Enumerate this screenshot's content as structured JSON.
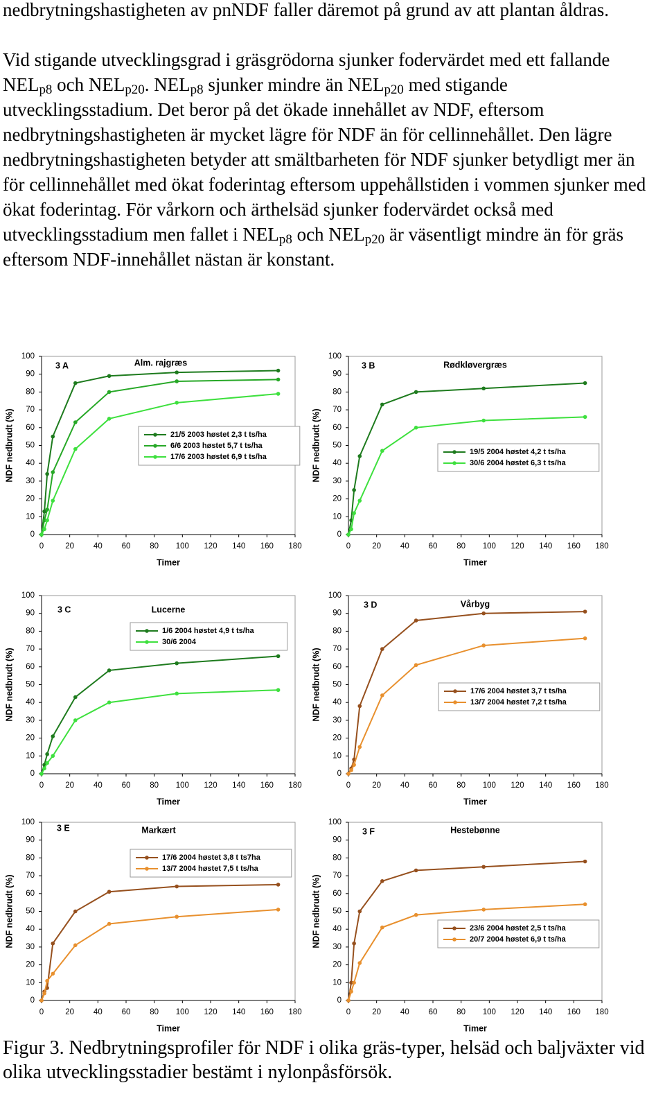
{
  "text": {
    "paragraphs": [
      [
        {
          "text": "nedbrytningshastigheten av pnNDF faller däremot på grund av att plantan åldras."
        }
      ],
      [
        {
          "text": "Vid stigande utvecklingsgrad i gräsgrödorna sjunker fodervärdet med ett fallande NEL"
        },
        {
          "sub": "p8"
        },
        {
          "text": " och NEL"
        },
        {
          "sub": "p20"
        },
        {
          "text": ". NEL"
        },
        {
          "sub": "p8"
        },
        {
          "text": " sjunker mindre än NEL"
        },
        {
          "sub": "p20"
        },
        {
          "text": " med stigande utvecklingsstadium. Det beror på det ökade innehållet av NDF, eftersom nedbrytningshastigheten är mycket lägre för NDF än för cellinnehållet. Den lägre nedbrytningshastigheten betyder att smältbarheten för NDF sjunker betydligt mer än för cellinnehållet med ökat foderintag eftersom uppehållstiden i vommen sjunker med ökat foderintag. För vårkorn och ärthelsäd sjunker fodervärdet också med utvecklingsstadium men fallet i NEL"
        },
        {
          "sub": "p8"
        },
        {
          "text": " och NEL"
        },
        {
          "sub": "p20"
        },
        {
          "text": " är väsentligt mindre än för gräs eftersom NDF-innehållet nästan är konstant."
        }
      ]
    ]
  },
  "chart_data": [
    {
      "type": "line",
      "panel": "3 A",
      "title": "Alm. rajgræs",
      "xlabel": "Timer",
      "ylabel": "NDF nedbrudt (%)",
      "x": [
        0,
        2,
        4,
        8,
        24,
        48,
        96,
        168
      ],
      "xlim": [
        0,
        180
      ],
      "xticks": [
        0,
        20,
        40,
        60,
        80,
        100,
        120,
        140,
        160,
        180
      ],
      "ylim": [
        0,
        100
      ],
      "yticks": [
        0,
        10,
        20,
        30,
        40,
        50,
        60,
        70,
        80,
        90,
        100
      ],
      "series": [
        {
          "name": "21/5 2003 høstet 2,3 t ts/ha",
          "color": "#1e7b1e",
          "values": [
            0,
            13,
            34,
            55,
            85,
            89,
            91,
            92
          ]
        },
        {
          "name": "6/6 2003 høstet 5,7 t ts/ha",
          "color": "#27a827",
          "values": [
            0,
            8,
            14,
            35,
            63,
            80,
            86,
            87
          ]
        },
        {
          "name": "17/6 2003 høstet 6,9 t ts/ha",
          "color": "#3ee03e",
          "values": [
            0,
            3,
            8,
            19,
            48,
            65,
            74,
            79
          ]
        }
      ]
    },
    {
      "type": "line",
      "panel": "3 B",
      "title": "Rødkløvergræs",
      "xlabel": "Timer",
      "ylabel": "NDF nedbrudt (%)",
      "x": [
        0,
        2,
        4,
        8,
        24,
        48,
        96,
        168
      ],
      "xlim": [
        0,
        180
      ],
      "xticks": [
        0,
        20,
        40,
        60,
        80,
        100,
        120,
        140,
        160,
        180
      ],
      "ylim": [
        0,
        100
      ],
      "yticks": [
        0,
        10,
        20,
        30,
        40,
        50,
        60,
        70,
        80,
        90,
        100
      ],
      "series": [
        {
          "name": "19/5 2004 høstet 4,2 t ts/ha",
          "color": "#1e7b1e",
          "values": [
            0,
            8,
            25,
            44,
            73,
            80,
            82,
            85
          ]
        },
        {
          "name": "30/6 2004 høstet 6,3 t ts/ha",
          "color": "#3ee03e",
          "values": [
            0,
            3,
            12,
            19,
            47,
            60,
            64,
            66
          ]
        }
      ]
    },
    {
      "type": "line",
      "panel": "3 C",
      "title": "Lucerne",
      "xlabel": "Timer",
      "ylabel": "NDF nedbrudt (%)",
      "x": [
        0,
        2,
        4,
        8,
        24,
        48,
        96,
        168
      ],
      "xlim": [
        0,
        180
      ],
      "xticks": [
        0,
        20,
        40,
        60,
        80,
        100,
        120,
        140,
        160,
        180
      ],
      "ylim": [
        0,
        100
      ],
      "yticks": [
        0,
        10,
        20,
        30,
        40,
        50,
        60,
        70,
        80,
        90,
        100
      ],
      "series": [
        {
          "name": "1/6 2004 høstet 4,9 t ts/ha",
          "color": "#1e7b1e",
          "values": [
            0,
            5,
            11,
            21,
            43,
            58,
            62,
            66
          ]
        },
        {
          "name": "30/6 2004",
          "color": "#3ee03e",
          "values": [
            0,
            3,
            6,
            10,
            30,
            40,
            45,
            47
          ]
        }
      ]
    },
    {
      "type": "line",
      "panel": "3 D",
      "title": "Vårbyg",
      "xlabel": "Timer",
      "ylabel": "NDF nedbrudt (%)",
      "x": [
        0,
        2,
        4,
        8,
        24,
        48,
        96,
        168
      ],
      "xlim": [
        0,
        180
      ],
      "xticks": [
        0,
        20,
        40,
        60,
        80,
        100,
        120,
        140,
        160,
        180
      ],
      "ylim": [
        0,
        100
      ],
      "yticks": [
        0,
        10,
        20,
        30,
        40,
        50,
        60,
        70,
        80,
        90,
        100
      ],
      "series": [
        {
          "name": "17/6 2004 høstet 3,7 t ts/ha",
          "color": "#96501e",
          "values": [
            0,
            3,
            8,
            38,
            70,
            86,
            90,
            91
          ]
        },
        {
          "name": "13/7 2004 høstet 7,2 t ts/ha",
          "color": "#e8902e",
          "values": [
            0,
            2,
            5,
            15,
            44,
            61,
            72,
            76
          ]
        }
      ]
    },
    {
      "type": "line",
      "panel": "3 E",
      "title": "Markært",
      "xlabel": "Timer",
      "ylabel": "NDF nedbrudt (%)",
      "x": [
        0,
        2,
        4,
        8,
        24,
        48,
        96,
        168
      ],
      "xlim": [
        0,
        180
      ],
      "xticks": [
        0,
        20,
        40,
        60,
        80,
        100,
        120,
        140,
        160,
        180
      ],
      "ylim": [
        0,
        100
      ],
      "yticks": [
        0,
        10,
        20,
        30,
        40,
        50,
        60,
        70,
        80,
        90,
        100
      ],
      "series": [
        {
          "name": "17/6 2004 høstet 3,8 t ts7ha",
          "color": "#96501e",
          "values": [
            0,
            5,
            7,
            32,
            50,
            61,
            64,
            65
          ]
        },
        {
          "name": "13/7 2004 høstet 7,5 t ts/ha",
          "color": "#e8902e",
          "values": [
            0,
            4,
            11,
            15,
            31,
            43,
            47,
            51
          ]
        }
      ]
    },
    {
      "type": "line",
      "panel": "3 F",
      "title": "Hestebønne",
      "xlabel": "Timer",
      "ylabel": "NDF nedbrudt (%)",
      "x": [
        0,
        2,
        4,
        8,
        24,
        48,
        96,
        168
      ],
      "xlim": [
        0,
        180
      ],
      "xticks": [
        0,
        20,
        40,
        60,
        80,
        100,
        120,
        140,
        160,
        180
      ],
      "ylim": [
        0,
        100
      ],
      "yticks": [
        0,
        10,
        20,
        30,
        40,
        50,
        60,
        70,
        80,
        90,
        100
      ],
      "series": [
        {
          "name": "23/6 2004 høstet 2,5 t ts/ha",
          "color": "#96501e",
          "values": [
            0,
            10,
            32,
            50,
            67,
            73,
            75,
            78
          ]
        },
        {
          "name": "20/7 2004 høstet 6,9 t ts/ha",
          "color": "#e8902e",
          "values": [
            0,
            5,
            10,
            21,
            41,
            48,
            51,
            54
          ]
        }
      ]
    }
  ],
  "caption": "Figur 3. Nedbrytningsprofiler för NDF i olika gräs-typer, helsäd och baljväxter vid olika utvecklingsstadier bestämt i nylonpåsförsök."
}
